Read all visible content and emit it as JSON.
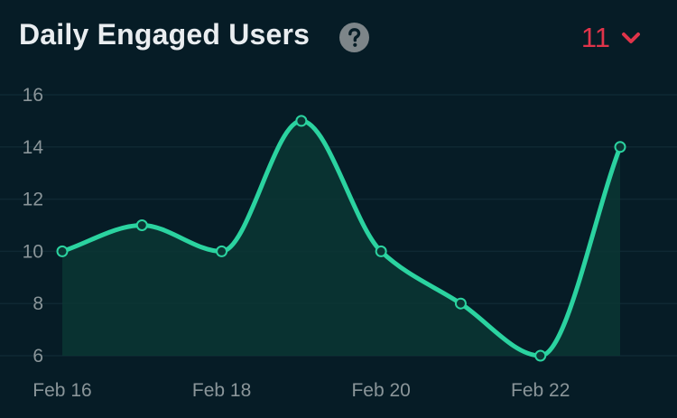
{
  "header": {
    "title": "Daily Engaged Users",
    "help_icon": "question-circle-icon",
    "value": "11",
    "dropdown_icon": "chevron-down-icon"
  },
  "colors": {
    "background": "#061c26",
    "line": "#2bd3a0",
    "area": "#0b3634",
    "value": "#e0344a",
    "help": "#7d8589"
  },
  "chart_data": {
    "type": "area",
    "title": "Daily Engaged Users",
    "xlabel": "",
    "ylabel": "",
    "x": [
      "Feb 16",
      "Feb 17",
      "Feb 18",
      "Feb 19",
      "Feb 20",
      "Feb 21",
      "Feb 22",
      "Feb 23"
    ],
    "series": [
      {
        "values": [
          10,
          11,
          10,
          15,
          10,
          8,
          6,
          14
        ]
      }
    ],
    "x_tick_labels": [
      "Feb 16",
      "Feb 18",
      "Feb 20",
      "Feb 22"
    ],
    "y_ticks": [
      6,
      8,
      10,
      12,
      14,
      16
    ],
    "ylim": [
      6,
      16
    ],
    "grid": true,
    "legend": "none",
    "curve": "smooth",
    "markers": "hollow-circle"
  }
}
